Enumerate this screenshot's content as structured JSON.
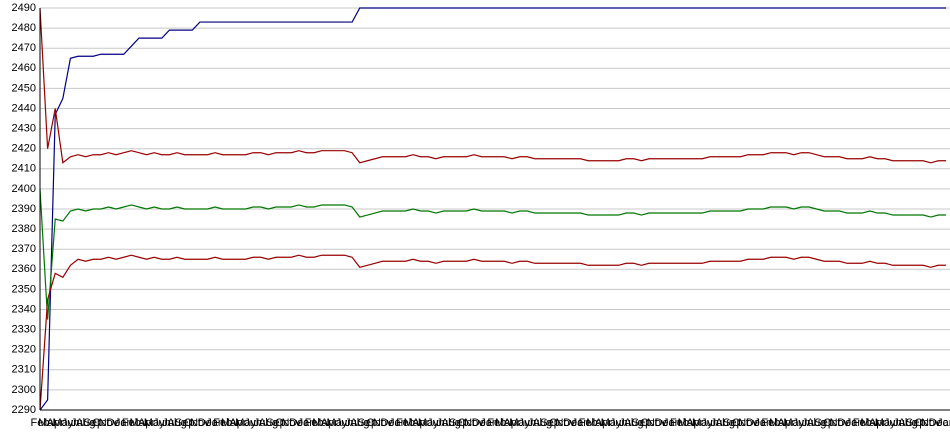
{
  "chart_data": {
    "type": "line",
    "categories": [
      "Feb",
      "Mar",
      "Apr",
      "May",
      "Jun",
      "Jul",
      "Aug",
      "Sep",
      "Oct",
      "Nov",
      "Dec",
      "Jan",
      "Feb",
      "Mar",
      "Apr",
      "May",
      "Jun",
      "Jul",
      "Aug",
      "Sep",
      "Oct",
      "Nov",
      "Dec",
      "Jan",
      "Feb",
      "Mar",
      "Apr",
      "May",
      "Jun",
      "Jul",
      "Aug",
      "Sep",
      "Oct",
      "Nov",
      "Dec",
      "Jan",
      "Feb",
      "Mar",
      "Apr",
      "May",
      "Jun",
      "Jul",
      "Aug",
      "Sep",
      "Oct",
      "Nov",
      "Dec",
      "Jan",
      "Feb",
      "Mar",
      "Apr",
      "May",
      "Jun",
      "Jul",
      "Aug",
      "Sep",
      "Oct",
      "Nov",
      "Dec",
      "Jan",
      "Feb",
      "Mar",
      "Apr",
      "May",
      "Jun",
      "Jul",
      "Aug",
      "Sep",
      "Oct",
      "Nov",
      "Dec",
      "Jan",
      "Feb",
      "Mar",
      "Apr",
      "May",
      "Jun",
      "Jul",
      "Aug",
      "Sep",
      "Oct",
      "Nov",
      "Dec",
      "Jan",
      "Feb",
      "Mar",
      "Apr",
      "May",
      "Jun",
      "Jul",
      "Aug",
      "Sep",
      "Oct",
      "Nov",
      "Dec",
      "Jan",
      "Feb",
      "Mar",
      "Apr",
      "May",
      "Jun",
      "Jul",
      "Aug",
      "Sep",
      "Oct",
      "Nov",
      "Dec",
      "Jan",
      "Feb",
      "Mar",
      "Apr",
      "May",
      "Jun",
      "Jul",
      "Aug",
      "Sep",
      "Oct",
      "Nov",
      "Dec",
      "Jan"
    ],
    "series": [
      {
        "color": "#000080",
        "values": [
          2290,
          2295,
          2437,
          2445,
          2465,
          2466,
          2466,
          2466,
          2467,
          2467,
          2467,
          2467,
          2471,
          2475,
          2475,
          2475,
          2475,
          2479,
          2479,
          2479,
          2479,
          2483,
          2483,
          2483,
          2483,
          2483,
          2483,
          2483,
          2483,
          2483,
          2483,
          2483,
          2483,
          2483,
          2483,
          2483,
          2483,
          2483,
          2483,
          2483,
          2483,
          2483,
          2490,
          2490,
          2490,
          2490,
          2490,
          2490,
          2490,
          2490,
          2490,
          2490,
          2490,
          2490,
          2490,
          2490,
          2490,
          2490,
          2490,
          2490,
          2490,
          2490,
          2490,
          2490,
          2490,
          2490,
          2490,
          2490,
          2490,
          2490,
          2490,
          2490,
          2490,
          2490,
          2490,
          2490,
          2490,
          2490,
          2490,
          2490,
          2490,
          2490,
          2490,
          2490,
          2490,
          2490,
          2490,
          2490,
          2490,
          2490,
          2490,
          2490,
          2490,
          2490,
          2490,
          2490,
          2490,
          2490,
          2490,
          2490,
          2490,
          2490,
          2490,
          2490,
          2490,
          2490,
          2490,
          2490,
          2490,
          2490,
          2490,
          2490,
          2490,
          2490,
          2490,
          2490,
          2490,
          2490,
          2490,
          2490
        ]
      },
      {
        "color": "#990000",
        "values": [
          2490,
          2420,
          2440,
          2413,
          2416,
          2417,
          2416,
          2417,
          2417,
          2418,
          2417,
          2418,
          2419,
          2418,
          2417,
          2418,
          2417,
          2417,
          2418,
          2417,
          2417,
          2417,
          2417,
          2418,
          2417,
          2417,
          2417,
          2417,
          2418,
          2418,
          2417,
          2418,
          2418,
          2418,
          2419,
          2418,
          2418,
          2419,
          2419,
          2419,
          2419,
          2418,
          2413,
          2414,
          2415,
          2416,
          2416,
          2416,
          2416,
          2417,
          2416,
          2416,
          2415,
          2416,
          2416,
          2416,
          2416,
          2417,
          2416,
          2416,
          2416,
          2416,
          2415,
          2416,
          2416,
          2415,
          2415,
          2415,
          2415,
          2415,
          2415,
          2415,
          2414,
          2414,
          2414,
          2414,
          2414,
          2415,
          2415,
          2414,
          2415,
          2415,
          2415,
          2415,
          2415,
          2415,
          2415,
          2415,
          2416,
          2416,
          2416,
          2416,
          2416,
          2417,
          2417,
          2417,
          2418,
          2418,
          2418,
          2417,
          2418,
          2418,
          2417,
          2416,
          2416,
          2416,
          2415,
          2415,
          2415,
          2416,
          2415,
          2415,
          2414,
          2414,
          2414,
          2414,
          2414,
          2413,
          2414,
          2414
        ]
      },
      {
        "color": "#007700",
        "values": [
          2400,
          2335,
          2385,
          2384,
          2389,
          2390,
          2389,
          2390,
          2390,
          2391,
          2390,
          2391,
          2392,
          2391,
          2390,
          2391,
          2390,
          2390,
          2391,
          2390,
          2390,
          2390,
          2390,
          2391,
          2390,
          2390,
          2390,
          2390,
          2391,
          2391,
          2390,
          2391,
          2391,
          2391,
          2392,
          2391,
          2391,
          2392,
          2392,
          2392,
          2392,
          2391,
          2386,
          2387,
          2388,
          2389,
          2389,
          2389,
          2389,
          2390,
          2389,
          2389,
          2388,
          2389,
          2389,
          2389,
          2389,
          2390,
          2389,
          2389,
          2389,
          2389,
          2388,
          2389,
          2389,
          2388,
          2388,
          2388,
          2388,
          2388,
          2388,
          2388,
          2387,
          2387,
          2387,
          2387,
          2387,
          2388,
          2388,
          2387,
          2388,
          2388,
          2388,
          2388,
          2388,
          2388,
          2388,
          2388,
          2389,
          2389,
          2389,
          2389,
          2389,
          2390,
          2390,
          2390,
          2391,
          2391,
          2391,
          2390,
          2391,
          2391,
          2390,
          2389,
          2389,
          2389,
          2388,
          2388,
          2388,
          2389,
          2388,
          2388,
          2387,
          2387,
          2387,
          2387,
          2387,
          2386,
          2387,
          2387
        ]
      },
      {
        "color": "#990000",
        "values": [
          2290,
          2345,
          2358,
          2356,
          2362,
          2365,
          2364,
          2365,
          2365,
          2366,
          2365,
          2366,
          2367,
          2366,
          2365,
          2366,
          2365,
          2365,
          2366,
          2365,
          2365,
          2365,
          2365,
          2366,
          2365,
          2365,
          2365,
          2365,
          2366,
          2366,
          2365,
          2366,
          2366,
          2366,
          2367,
          2366,
          2366,
          2367,
          2367,
          2367,
          2367,
          2366,
          2361,
          2362,
          2363,
          2364,
          2364,
          2364,
          2364,
          2365,
          2364,
          2364,
          2363,
          2364,
          2364,
          2364,
          2364,
          2365,
          2364,
          2364,
          2364,
          2364,
          2363,
          2364,
          2364,
          2363,
          2363,
          2363,
          2363,
          2363,
          2363,
          2363,
          2362,
          2362,
          2362,
          2362,
          2362,
          2363,
          2363,
          2362,
          2363,
          2363,
          2363,
          2363,
          2363,
          2363,
          2363,
          2363,
          2364,
          2364,
          2364,
          2364,
          2364,
          2365,
          2365,
          2365,
          2366,
          2366,
          2366,
          2365,
          2366,
          2366,
          2365,
          2364,
          2364,
          2364,
          2363,
          2363,
          2363,
          2364,
          2363,
          2363,
          2362,
          2362,
          2362,
          2362,
          2362,
          2361,
          2362,
          2362
        ]
      }
    ],
    "ylim": [
      2290,
      2490
    ],
    "yticks": [
      2290,
      2300,
      2310,
      2320,
      2330,
      2340,
      2350,
      2360,
      2370,
      2380,
      2390,
      2400,
      2410,
      2420,
      2430,
      2440,
      2450,
      2460,
      2470,
      2480,
      2490
    ],
    "grid": true
  }
}
